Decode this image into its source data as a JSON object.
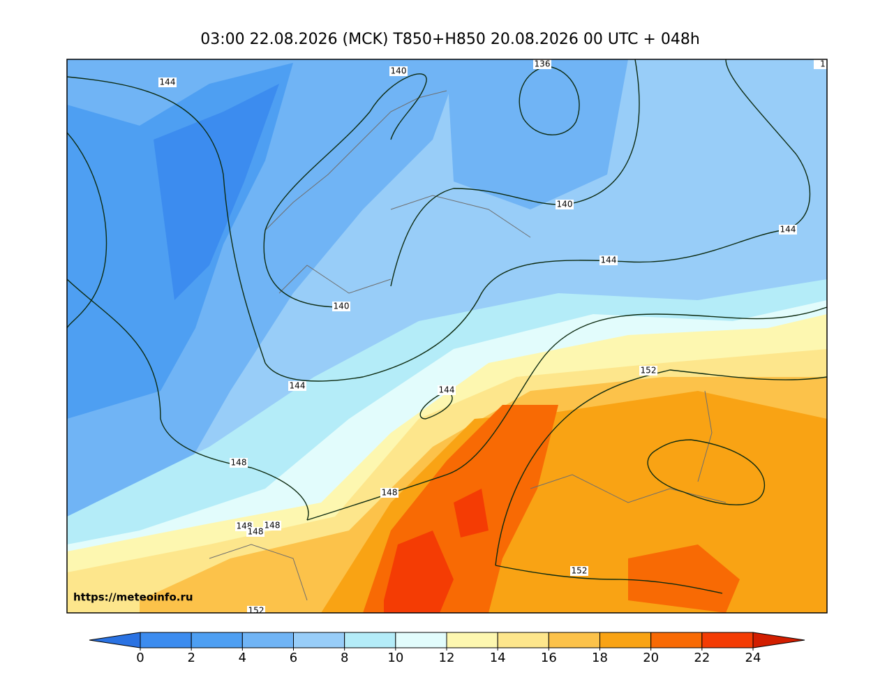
{
  "title": "03:00 22.08.2026 (MCK) T850+H850 20.08.2026 00 UTC + 048h",
  "url": "https://meteoinfo.ru",
  "contour_labels": [
    144,
    140,
    136,
    1,
    140,
    144,
    144,
    140,
    144,
    144,
    152,
    148,
    148,
    148,
    148,
    148,
    152,
    152
  ],
  "colorbar": {
    "ticks": [
      0,
      2,
      4,
      6,
      8,
      10,
      12,
      14,
      16,
      18,
      20,
      22,
      24
    ],
    "colors": [
      "#3c8cef",
      "#4e9ff2",
      "#70b4f5",
      "#98cdf8",
      "#b4ecf8",
      "#e2fcfc",
      "#fdf7b0",
      "#fde68c",
      "#fcc24a",
      "#f9a314",
      "#f86a04",
      "#f43c04"
    ],
    "under_color": "#2a72e2",
    "over_color": "#d21e00"
  }
}
